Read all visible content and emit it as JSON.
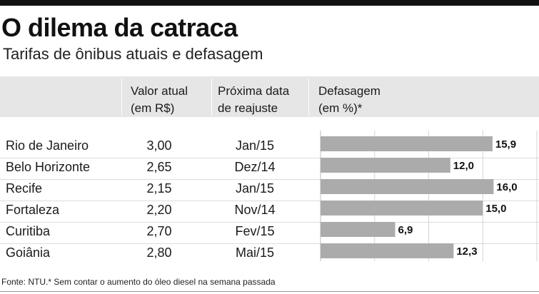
{
  "title": "O dilema da catraca",
  "subtitle": "Tarifas de ônibus atuais e defasagem",
  "headers": {
    "valor": [
      "Valor atual",
      "(em R$)"
    ],
    "data": [
      "Próxima data",
      "de reajuste"
    ],
    "defasagem": [
      "Defasagem",
      "(em %)*"
    ]
  },
  "rows": [
    {
      "city": "Rio de Janeiro",
      "value": "3,00",
      "date": "Jan/15"
    },
    {
      "city": "Belo Horizonte",
      "value": "2,65",
      "date": "Dez/14"
    },
    {
      "city": "Recife",
      "value": "2,15",
      "date": "Jan/15"
    },
    {
      "city": "Fortaleza",
      "value": "2,20",
      "date": "Nov/14"
    },
    {
      "city": "Curitiba",
      "value": "2,70",
      "date": "Fev/15"
    },
    {
      "city": "Goiânia",
      "value": "2,80",
      "date": "Mai/15"
    }
  ],
  "chart_data": {
    "type": "bar",
    "categories": [
      "Rio de Janeiro",
      "Belo Horizonte",
      "Recife",
      "Fortaleza",
      "Curitiba",
      "Goiânia"
    ],
    "values": [
      15.9,
      12.0,
      16.0,
      15.0,
      6.9,
      12.3
    ],
    "value_labels": [
      "15,9",
      "12,0",
      "16,0",
      "15,0",
      "6,9",
      "12,3"
    ],
    "xlim": [
      0,
      20
    ],
    "grid": true,
    "bar_color": "#ababab"
  },
  "footer": "Fonte: NTU.* Sem contar o aumento do óleo diesel na semana passada"
}
